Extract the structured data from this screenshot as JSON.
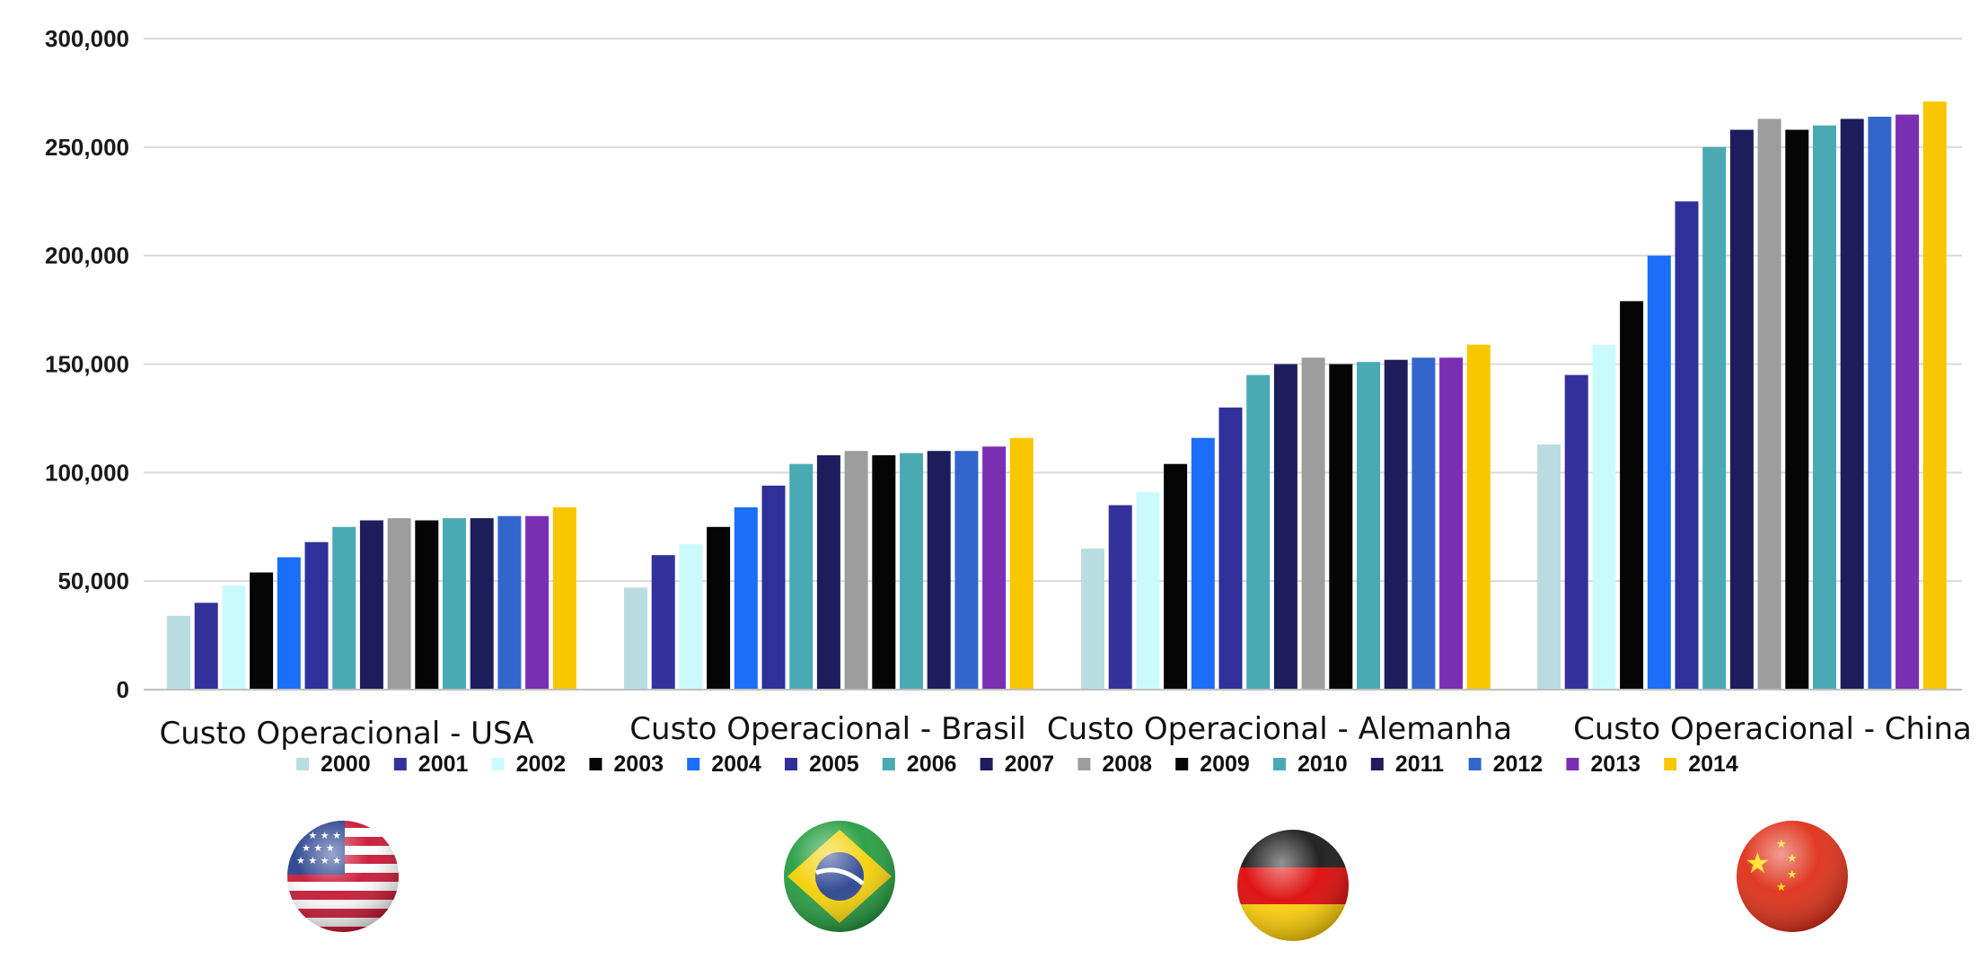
{
  "chart_data": {
    "type": "bar",
    "title": "",
    "xlabel": "",
    "ylabel": "",
    "ylim": [
      0,
      300000
    ],
    "y_ticks": [
      0,
      50000,
      100000,
      150000,
      200000,
      250000,
      300000
    ],
    "y_tick_labels": [
      "0",
      "50,000",
      "100,000",
      "150,000",
      "200,000",
      "250,000",
      "300,000"
    ],
    "grid": true,
    "legend_position": "bottom",
    "categories": [
      "Custo Operacional - USA",
      "Custo Operacional - Brasil",
      "Custo Operacional - Alemanha",
      "Custo Operacional - China"
    ],
    "series": [
      {
        "name": "2000",
        "color": "#b9dde0",
        "values": [
          34000,
          47000,
          65000,
          113000
        ]
      },
      {
        "name": "2001",
        "color": "#32329a",
        "values": [
          40000,
          62000,
          85000,
          145000
        ]
      },
      {
        "name": "2002",
        "color": "#cbfafd",
        "values": [
          48000,
          67000,
          91000,
          159000
        ]
      },
      {
        "name": "2003",
        "color": "#050505",
        "values": [
          54000,
          75000,
          104000,
          179000
        ]
      },
      {
        "name": "2004",
        "color": "#1a6ef7",
        "values": [
          61000,
          84000,
          116000,
          200000
        ]
      },
      {
        "name": "2005",
        "color": "#30309a",
        "values": [
          68000,
          94000,
          130000,
          225000
        ]
      },
      {
        "name": "2006",
        "color": "#4aaab3",
        "values": [
          75000,
          104000,
          145000,
          250000
        ]
      },
      {
        "name": "2007",
        "color": "#1d1d5c",
        "values": [
          78000,
          108000,
          150000,
          258000
        ]
      },
      {
        "name": "2008",
        "color": "#9d9d9d",
        "values": [
          79000,
          110000,
          153000,
          263000
        ]
      },
      {
        "name": "2009",
        "color": "#050505",
        "values": [
          78000,
          108000,
          150000,
          258000
        ]
      },
      {
        "name": "2010",
        "color": "#4aaab3",
        "values": [
          79000,
          109000,
          151000,
          260000
        ]
      },
      {
        "name": "2011",
        "color": "#1d1d5c",
        "values": [
          79000,
          110000,
          152000,
          263000
        ]
      },
      {
        "name": "2012",
        "color": "#3366cc",
        "values": [
          80000,
          110000,
          153000,
          264000
        ]
      },
      {
        "name": "2013",
        "color": "#7b2fb3",
        "values": [
          80000,
          112000,
          153000,
          265000
        ]
      },
      {
        "name": "2014",
        "color": "#f9c600",
        "values": [
          84000,
          116000,
          159000,
          271000
        ]
      }
    ],
    "flags": [
      {
        "country": "USA",
        "icon": "usa-flag-icon"
      },
      {
        "country": "Brasil",
        "icon": "brazil-flag-icon"
      },
      {
        "country": "Alemanha",
        "icon": "germany-flag-icon"
      },
      {
        "country": "China",
        "icon": "china-flag-icon"
      }
    ]
  }
}
